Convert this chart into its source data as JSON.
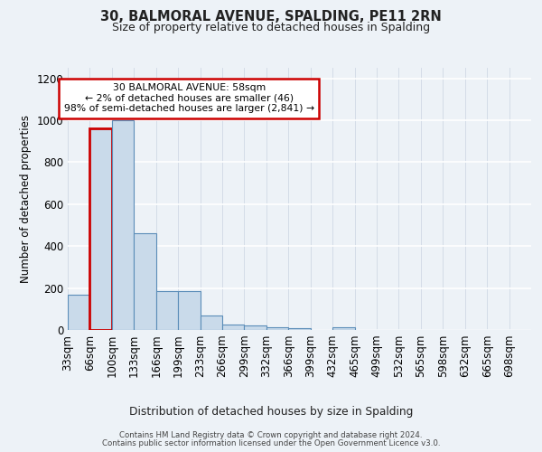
{
  "title1": "30, BALMORAL AVENUE, SPALDING, PE11 2RN",
  "title2": "Size of property relative to detached houses in Spalding",
  "xlabel": "Distribution of detached houses by size in Spalding",
  "ylabel": "Number of detached properties",
  "categories": [
    "33sqm",
    "66sqm",
    "100sqm",
    "133sqm",
    "166sqm",
    "199sqm",
    "233sqm",
    "266sqm",
    "299sqm",
    "332sqm",
    "366sqm",
    "399sqm",
    "432sqm",
    "465sqm",
    "499sqm",
    "532sqm",
    "565sqm",
    "598sqm",
    "632sqm",
    "665sqm",
    "698sqm"
  ],
  "values": [
    170,
    960,
    1000,
    460,
    185,
    185,
    70,
    25,
    20,
    15,
    10,
    0,
    12,
    0,
    0,
    0,
    0,
    0,
    0,
    0,
    0
  ],
  "bar_color": "#c9daea",
  "bar_edge_color": "#5b8db8",
  "highlight_bar_index": 1,
  "highlight_edge_color": "#cc0000",
  "annotation_text": "30 BALMORAL AVENUE: 58sqm\n← 2% of detached houses are smaller (46)\n98% of semi-detached houses are larger (2,841) →",
  "annotation_box_facecolor": "white",
  "annotation_box_edgecolor": "#cc0000",
  "footer1": "Contains HM Land Registry data © Crown copyright and database right 2024.",
  "footer2": "Contains public sector information licensed under the Open Government Licence v3.0.",
  "bg_color": "#edf2f7",
  "ylim": [
    0,
    1250
  ],
  "yticks": [
    0,
    200,
    400,
    600,
    800,
    1000,
    1200
  ],
  "grid_color": "#d0d8e4"
}
